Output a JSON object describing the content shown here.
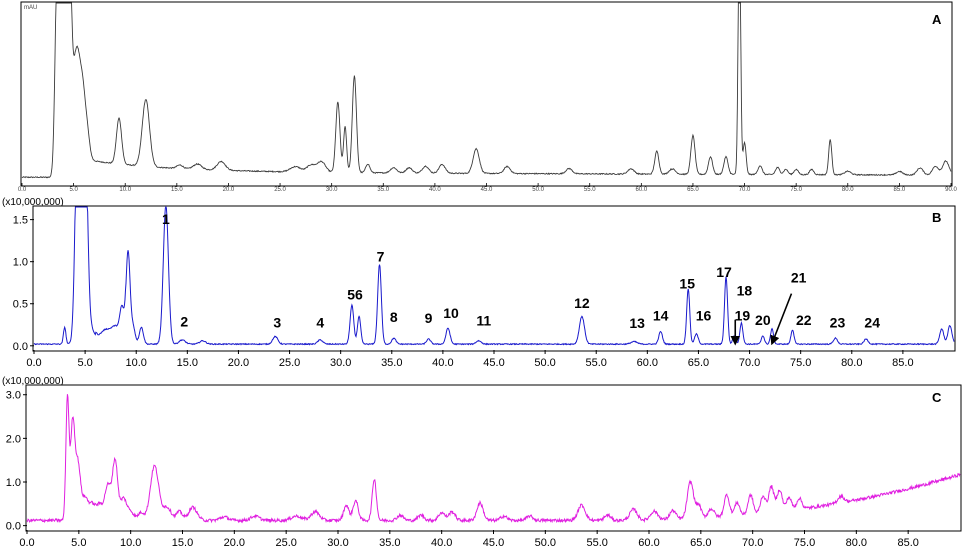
{
  "chart_data": [
    {
      "type": "line",
      "panel": "A",
      "header": {
        "left": "mAU",
        "right": ""
      },
      "xlim": [
        0,
        90
      ],
      "ylim": [
        0,
        100
      ],
      "line_color": "#3a3a3a",
      "x_ticks_mini": [
        "0.0",
        "5.0",
        "10.0",
        "15.0",
        "20.0",
        "25.0",
        "30.0",
        "35.0",
        "40.0",
        "45.0",
        "50.0",
        "55.0",
        "60.0",
        "65.0",
        "70.0",
        "75.0",
        "80.0",
        "85.0",
        "90.0"
      ],
      "peaks": [
        {
          "x": 3.3,
          "y": 48,
          "w": 0.18
        },
        {
          "x": 3.7,
          "y": 210,
          "w": 0.25
        },
        {
          "x": 4.1,
          "y": 300,
          "w": 0.2
        },
        {
          "x": 4.5,
          "y": 160,
          "w": 0.22
        },
        {
          "x": 5.3,
          "y": 62,
          "w": 0.4
        },
        {
          "x": 5.9,
          "y": 22,
          "w": 0.25
        },
        {
          "x": 6.3,
          "y": 15,
          "w": 0.25
        },
        {
          "x": 9.4,
          "y": 26,
          "w": 0.25
        },
        {
          "x": 12.0,
          "y": 38,
          "w": 0.35
        },
        {
          "x": 15.3,
          "y": 2,
          "w": 0.3
        },
        {
          "x": 17.0,
          "y": 3,
          "w": 0.4
        },
        {
          "x": 19.3,
          "y": 5,
          "w": 0.4
        },
        {
          "x": 26.5,
          "y": 3,
          "w": 0.5
        },
        {
          "x": 28.0,
          "y": 4,
          "w": 0.4
        },
        {
          "x": 29.0,
          "y": 6,
          "w": 0.4
        },
        {
          "x": 30.6,
          "y": 40,
          "w": 0.2
        },
        {
          "x": 31.3,
          "y": 26,
          "w": 0.15
        },
        {
          "x": 32.2,
          "y": 55,
          "w": 0.2
        },
        {
          "x": 33.5,
          "y": 5,
          "w": 0.2
        },
        {
          "x": 36.0,
          "y": 3,
          "w": 0.3
        },
        {
          "x": 37.5,
          "y": 3,
          "w": 0.3
        },
        {
          "x": 39.1,
          "y": 4,
          "w": 0.3
        },
        {
          "x": 40.7,
          "y": 5,
          "w": 0.3
        },
        {
          "x": 44.0,
          "y": 14,
          "w": 0.3
        },
        {
          "x": 47.0,
          "y": 4,
          "w": 0.3
        },
        {
          "x": 53.0,
          "y": 3,
          "w": 0.3
        },
        {
          "x": 59.0,
          "y": 3,
          "w": 0.3
        },
        {
          "x": 61.5,
          "y": 13,
          "w": 0.2
        },
        {
          "x": 63.0,
          "y": 3,
          "w": 0.3
        },
        {
          "x": 65.0,
          "y": 22,
          "w": 0.2
        },
        {
          "x": 66.7,
          "y": 10,
          "w": 0.2
        },
        {
          "x": 68.2,
          "y": 10,
          "w": 0.2
        },
        {
          "x": 69.5,
          "y": 150,
          "w": 0.12
        },
        {
          "x": 70.0,
          "y": 18,
          "w": 0.15
        },
        {
          "x": 71.5,
          "y": 5,
          "w": 0.2
        },
        {
          "x": 73.2,
          "y": 4,
          "w": 0.2
        },
        {
          "x": 74.0,
          "y": 3,
          "w": 0.2
        },
        {
          "x": 75.0,
          "y": 3,
          "w": 0.2
        },
        {
          "x": 76.5,
          "y": 3,
          "w": 0.2
        },
        {
          "x": 78.3,
          "y": 20,
          "w": 0.15
        },
        {
          "x": 80.0,
          "y": 2,
          "w": 0.3
        },
        {
          "x": 85.0,
          "y": 2,
          "w": 0.3
        },
        {
          "x": 87.0,
          "y": 4,
          "w": 0.3
        },
        {
          "x": 88.5,
          "y": 5,
          "w": 0.3
        },
        {
          "x": 89.5,
          "y": 8,
          "w": 0.3
        }
      ]
    },
    {
      "type": "line",
      "panel": "B",
      "scale_label": "(x10,000,000)",
      "xlim": [
        0,
        90
      ],
      "ylim": [
        -0.05,
        1.65
      ],
      "line_color": "#1a1acc",
      "x_ticks": [
        "0.0",
        "5.0",
        "10.0",
        "15.0",
        "20.0",
        "25.0",
        "30.0",
        "35.0",
        "40.0",
        "45.0",
        "50.0",
        "55.0",
        "60.0",
        "65.0",
        "70.0",
        "75.0",
        "80.0",
        "85.0"
      ],
      "x_tick_values": [
        0,
        5,
        10,
        15,
        20,
        25,
        30,
        35,
        40,
        45,
        50,
        55,
        60,
        65,
        70,
        75,
        80,
        85
      ],
      "y_ticks": [
        "0.0",
        "0.5",
        "1.0",
        "1.5"
      ],
      "y_tick_values": [
        0,
        0.5,
        1.0,
        1.5
      ],
      "baseline": 0.02,
      "peaks": [
        {
          "x": 3.0,
          "y": 0.2,
          "w": 0.12
        },
        {
          "x": 4.3,
          "y": 3.0,
          "w": 0.25
        },
        {
          "x": 5.0,
          "y": 2.5,
          "w": 0.25
        },
        {
          "x": 5.7,
          "y": 0.15,
          "w": 0.3
        },
        {
          "x": 7.0,
          "y": 0.12,
          "w": 0.5
        },
        {
          "x": 8.0,
          "y": 0.15,
          "w": 0.4
        },
        {
          "x": 8.6,
          "y": 0.35,
          "w": 0.2
        },
        {
          "x": 9.2,
          "y": 1.1,
          "w": 0.2
        },
        {
          "x": 9.7,
          "y": 0.2,
          "w": 0.2
        },
        {
          "x": 10.5,
          "y": 0.2,
          "w": 0.2
        },
        {
          "x": 12.9,
          "y": 1.65,
          "w": 0.25
        },
        {
          "x": 14.5,
          "y": 0.05,
          "w": 0.3
        },
        {
          "x": 16.5,
          "y": 0.04,
          "w": 0.3
        },
        {
          "x": 23.6,
          "y": 0.09,
          "w": 0.25
        },
        {
          "x": 28.0,
          "y": 0.05,
          "w": 0.25
        },
        {
          "x": 31.1,
          "y": 0.46,
          "w": 0.18
        },
        {
          "x": 31.8,
          "y": 0.33,
          "w": 0.16
        },
        {
          "x": 33.8,
          "y": 0.95,
          "w": 0.18
        },
        {
          "x": 35.2,
          "y": 0.07,
          "w": 0.2
        },
        {
          "x": 38.6,
          "y": 0.06,
          "w": 0.2
        },
        {
          "x": 40.5,
          "y": 0.19,
          "w": 0.2
        },
        {
          "x": 43.5,
          "y": 0.04,
          "w": 0.25
        },
        {
          "x": 53.6,
          "y": 0.33,
          "w": 0.25
        },
        {
          "x": 58.7,
          "y": 0.03,
          "w": 0.3
        },
        {
          "x": 61.3,
          "y": 0.15,
          "w": 0.18
        },
        {
          "x": 64.0,
          "y": 0.66,
          "w": 0.15
        },
        {
          "x": 64.8,
          "y": 0.12,
          "w": 0.18
        },
        {
          "x": 67.7,
          "y": 0.8,
          "w": 0.15
        },
        {
          "x": 68.5,
          "y": 0.1,
          "w": 0.15
        },
        {
          "x": 69.2,
          "y": 0.25,
          "w": 0.15
        },
        {
          "x": 71.3,
          "y": 0.1,
          "w": 0.15
        },
        {
          "x": 72.2,
          "y": 0.18,
          "w": 0.15
        },
        {
          "x": 74.2,
          "y": 0.17,
          "w": 0.15
        },
        {
          "x": 78.4,
          "y": 0.07,
          "w": 0.2
        },
        {
          "x": 81.4,
          "y": 0.06,
          "w": 0.2
        },
        {
          "x": 88.8,
          "y": 0.18,
          "w": 0.2
        },
        {
          "x": 89.6,
          "y": 0.22,
          "w": 0.2
        }
      ],
      "peak_labels": [
        {
          "text": "1",
          "x": 12.9,
          "y": 1.45
        },
        {
          "text": "2",
          "x": 14.7,
          "y": 0.23
        },
        {
          "text": "3",
          "x": 23.8,
          "y": 0.22
        },
        {
          "text": "4",
          "x": 28.0,
          "y": 0.22
        },
        {
          "text": "56",
          "x": 31.4,
          "y": 0.55
        },
        {
          "text": "7",
          "x": 33.9,
          "y": 1.0
        },
        {
          "text": "8",
          "x": 35.2,
          "y": 0.28
        },
        {
          "text": "9",
          "x": 38.6,
          "y": 0.27
        },
        {
          "text": "10",
          "x": 40.8,
          "y": 0.33
        },
        {
          "text": "11",
          "x": 44.0,
          "y": 0.24
        },
        {
          "text": "12",
          "x": 53.6,
          "y": 0.45
        },
        {
          "text": "13",
          "x": 59.0,
          "y": 0.21
        },
        {
          "text": "14",
          "x": 61.3,
          "y": 0.3
        },
        {
          "text": "15",
          "x": 63.9,
          "y": 0.68
        },
        {
          "text": "16",
          "x": 65.5,
          "y": 0.3
        },
        {
          "text": "17",
          "x": 67.5,
          "y": 0.82
        },
        {
          "text": "18",
          "x": 69.5,
          "y": 0.6
        },
        {
          "text": "19",
          "x": 69.3,
          "y": 0.3
        },
        {
          "text": "20",
          "x": 71.3,
          "y": 0.25
        },
        {
          "text": "21",
          "x": 74.8,
          "y": 0.75
        },
        {
          "text": "22",
          "x": 75.3,
          "y": 0.25
        },
        {
          "text": "23",
          "x": 78.6,
          "y": 0.22
        },
        {
          "text": "24",
          "x": 82.0,
          "y": 0.22
        }
      ],
      "arrows": [
        {
          "from": [
            68.6,
            0.31
          ],
          "to": [
            68.6,
            0.06
          ]
        },
        {
          "from": [
            74.1,
            0.62
          ],
          "to": [
            72.3,
            0.06
          ]
        }
      ]
    },
    {
      "type": "line",
      "panel": "C",
      "scale_label": "(x10,000,000)",
      "xlim": [
        0,
        90
      ],
      "ylim": [
        -0.1,
        3.2
      ],
      "line_color": "#e020e0",
      "x_ticks": [
        "0.0",
        "5.0",
        "10.0",
        "15.0",
        "20.0",
        "25.0",
        "30.0",
        "35.0",
        "40.0",
        "45.0",
        "50.0",
        "55.0",
        "60.0",
        "65.0",
        "70.0",
        "75.0",
        "80.0",
        "85.0"
      ],
      "x_tick_values": [
        0,
        5,
        10,
        15,
        20,
        25,
        30,
        35,
        40,
        45,
        50,
        55,
        60,
        65,
        70,
        75,
        80,
        85
      ],
      "y_ticks": [
        "0.0",
        "1.0",
        "2.0",
        "3.0"
      ],
      "y_tick_values": [
        0,
        1.0,
        2.0,
        3.0
      ],
      "baseline": 0.12,
      "peaks": [
        {
          "x": 3.9,
          "y": 2.8,
          "w": 0.15
        },
        {
          "x": 4.4,
          "y": 2.2,
          "w": 0.2
        },
        {
          "x": 4.9,
          "y": 1.3,
          "w": 0.25
        },
        {
          "x": 5.6,
          "y": 0.5,
          "w": 0.3
        },
        {
          "x": 6.3,
          "y": 0.35,
          "w": 0.3
        },
        {
          "x": 7.0,
          "y": 0.35,
          "w": 0.3
        },
        {
          "x": 7.8,
          "y": 0.8,
          "w": 0.3
        },
        {
          "x": 8.5,
          "y": 1.35,
          "w": 0.25
        },
        {
          "x": 9.3,
          "y": 0.5,
          "w": 0.3
        },
        {
          "x": 10.0,
          "y": 0.2,
          "w": 0.3
        },
        {
          "x": 11.0,
          "y": 0.18,
          "w": 0.3
        },
        {
          "x": 12.3,
          "y": 1.25,
          "w": 0.4
        },
        {
          "x": 13.5,
          "y": 0.3,
          "w": 0.4
        },
        {
          "x": 14.7,
          "y": 0.2,
          "w": 0.3
        },
        {
          "x": 16.0,
          "y": 0.3,
          "w": 0.4
        },
        {
          "x": 19.0,
          "y": 0.08,
          "w": 0.4
        },
        {
          "x": 22.0,
          "y": 0.1,
          "w": 0.4
        },
        {
          "x": 26.0,
          "y": 0.1,
          "w": 0.5
        },
        {
          "x": 27.8,
          "y": 0.2,
          "w": 0.4
        },
        {
          "x": 30.8,
          "y": 0.35,
          "w": 0.25
        },
        {
          "x": 31.7,
          "y": 0.45,
          "w": 0.25
        },
        {
          "x": 33.5,
          "y": 0.95,
          "w": 0.2
        },
        {
          "x": 36.0,
          "y": 0.12,
          "w": 0.3
        },
        {
          "x": 38.0,
          "y": 0.12,
          "w": 0.3
        },
        {
          "x": 40.0,
          "y": 0.18,
          "w": 0.3
        },
        {
          "x": 41.0,
          "y": 0.2,
          "w": 0.3
        },
        {
          "x": 43.7,
          "y": 0.4,
          "w": 0.3
        },
        {
          "x": 46.0,
          "y": 0.1,
          "w": 0.3
        },
        {
          "x": 48.5,
          "y": 0.1,
          "w": 0.3
        },
        {
          "x": 53.5,
          "y": 0.35,
          "w": 0.35
        },
        {
          "x": 56.0,
          "y": 0.12,
          "w": 0.3
        },
        {
          "x": 58.5,
          "y": 0.25,
          "w": 0.35
        },
        {
          "x": 60.5,
          "y": 0.2,
          "w": 0.35
        },
        {
          "x": 62.3,
          "y": 0.2,
          "w": 0.3
        },
        {
          "x": 64.0,
          "y": 0.85,
          "w": 0.3
        },
        {
          "x": 64.8,
          "y": 0.3,
          "w": 0.25
        },
        {
          "x": 66.0,
          "y": 0.2,
          "w": 0.3
        },
        {
          "x": 67.5,
          "y": 0.5,
          "w": 0.25
        },
        {
          "x": 68.5,
          "y": 0.3,
          "w": 0.25
        },
        {
          "x": 69.8,
          "y": 0.45,
          "w": 0.25
        },
        {
          "x": 71.0,
          "y": 0.4,
          "w": 0.25
        },
        {
          "x": 71.8,
          "y": 0.6,
          "w": 0.25
        },
        {
          "x": 72.6,
          "y": 0.5,
          "w": 0.25
        },
        {
          "x": 73.5,
          "y": 0.3,
          "w": 0.25
        },
        {
          "x": 74.5,
          "y": 0.25,
          "w": 0.25
        },
        {
          "x": 78.5,
          "y": 0.15,
          "w": 0.3
        }
      ]
    }
  ]
}
